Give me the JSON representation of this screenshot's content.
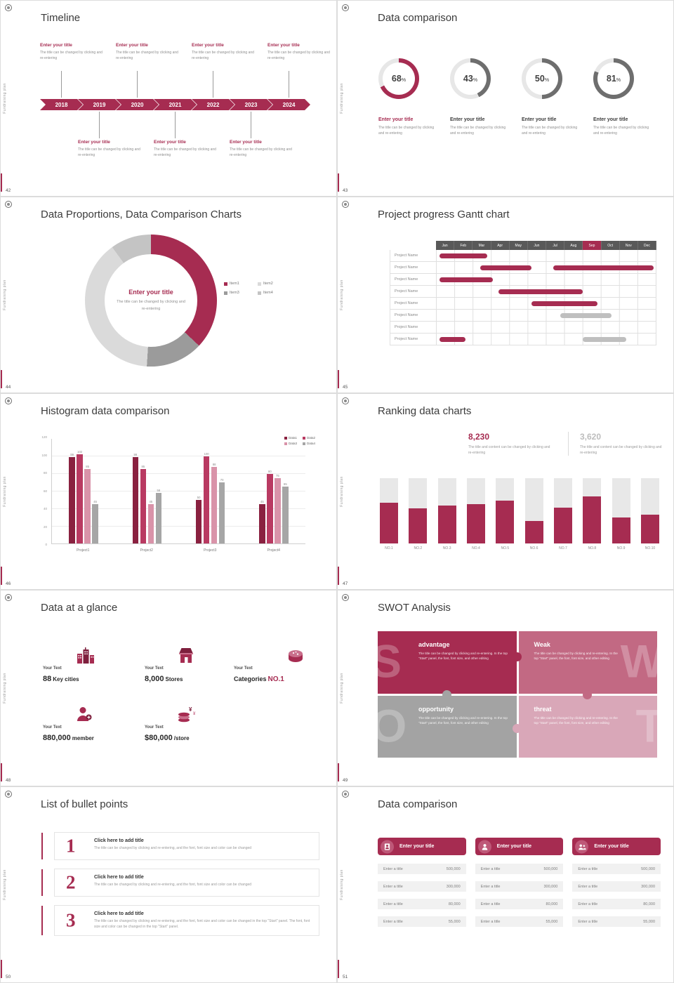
{
  "ui": {
    "accent": "#A62C51",
    "side_label": "Fundraising plan"
  },
  "slide42": {
    "page": "42",
    "title": "Timeline",
    "years": [
      "2018",
      "2019",
      "2020",
      "2021",
      "2022",
      "2023",
      "2024"
    ],
    "top_entries": [
      {
        "title": "Enter your title",
        "desc": "The title can be changed by clicking and re-entering"
      },
      {
        "title": "Enter your title",
        "desc": "The title can be changed by clicking and re-entering"
      },
      {
        "title": "Enter your title",
        "desc": "The title can be changed by clicking and re-entering"
      },
      {
        "title": "Enter your title",
        "desc": "The title can be changed by clicking and re-entering"
      }
    ],
    "bottom_entries": [
      {
        "title": "Enter your title",
        "desc": "The title can be changed by clicking and re-entering"
      },
      {
        "title": "Enter your title",
        "desc": "The title can be changed by clicking and re-entering"
      },
      {
        "title": "Enter your title",
        "desc": "The title can be changed by clicking and re-entering"
      }
    ]
  },
  "slide43": {
    "page": "43",
    "title": "Data comparison",
    "pct_label": "%",
    "chart_data": {
      "type": "pie",
      "values": [
        68,
        43,
        50,
        81
      ],
      "labels": [
        "Enter your title",
        "Enter your title",
        "Enter your title",
        "Enter your title"
      ]
    },
    "donuts": [
      {
        "value": "68",
        "pct": 68,
        "color": "#A62C51",
        "title": "Enter your title",
        "desc": "The title can be changed by clicking and re-entering"
      },
      {
        "value": "43",
        "pct": 43,
        "color": "#6E6E6E",
        "title": "Enter your title",
        "desc": "The title can be changed by clicking and re-entering"
      },
      {
        "value": "50",
        "pct": 50,
        "color": "#6E6E6E",
        "title": "Enter your title",
        "desc": "The title can be changed by clicking and re-entering"
      },
      {
        "value": "81",
        "pct": 81,
        "color": "#6E6E6E",
        "title": "Enter your title",
        "desc": "The title can be changed by clicking and re-entering"
      }
    ]
  },
  "slide44": {
    "page": "44",
    "title": "Data Proportions, Data Comparison Charts",
    "center_title": "Enter your title",
    "center_desc": "The title can be changed by clicking and re-entering",
    "chart_data": {
      "type": "pie",
      "segments": [
        {
          "label": "Item1",
          "color": "#A62C51",
          "value": 37
        },
        {
          "label": "Item3",
          "color": "#9B9B9B",
          "value": 14
        },
        {
          "label": "Item2",
          "color": "#DADADA",
          "value": 39
        },
        {
          "label": "Item4",
          "color": "#C4C4C4",
          "value": 10
        }
      ]
    },
    "legend": [
      {
        "label": "Item1",
        "color": "#A62C51"
      },
      {
        "label": "Item2",
        "color": "#DADADA"
      },
      {
        "label": "Item3",
        "color": "#9B9B9B"
      },
      {
        "label": "Item4",
        "color": "#C4C4C4"
      }
    ]
  },
  "slide45": {
    "page": "45",
    "title": "Project progress Gantt chart",
    "months": [
      "Jan",
      "Feb",
      "Mar",
      "Apr",
      "May",
      "Jun",
      "Jul",
      "Aug",
      "Sep",
      "Oct",
      "Nov",
      "Dec"
    ],
    "chart_data": {
      "type": "gantt",
      "rows": [
        {
          "label": "Project Name",
          "bars": [
            {
              "start": 0.2,
              "end": 2.8,
              "color": "accent"
            }
          ]
        },
        {
          "label": "Project Name",
          "bars": [
            {
              "start": 2.4,
              "end": 5.2,
              "color": "accent"
            },
            {
              "start": 6.4,
              "end": 11.9,
              "color": "accent"
            }
          ]
        },
        {
          "label": "Project Name",
          "bars": [
            {
              "start": 0.2,
              "end": 3.1,
              "color": "accent"
            }
          ]
        },
        {
          "label": "Project Name",
          "bars": [
            {
              "start": 3.4,
              "end": 8.0,
              "color": "accent"
            }
          ]
        },
        {
          "label": "Project Name",
          "bars": [
            {
              "start": 5.2,
              "end": 8.8,
              "color": "accent"
            }
          ]
        },
        {
          "label": "Project Name",
          "bars": [
            {
              "start": 6.8,
              "end": 9.6,
              "color": "gray"
            }
          ]
        },
        {
          "label": "Project Name",
          "bars": []
        },
        {
          "label": "Project Name",
          "bars": [
            {
              "start": 0.2,
              "end": 1.6,
              "color": "accent"
            },
            {
              "start": 8.0,
              "end": 10.4,
              "color": "gray"
            }
          ]
        }
      ]
    }
  },
  "slide46": {
    "page": "46",
    "title": "Histogram data comparison",
    "chart_data": {
      "type": "bar",
      "categories": [
        "Project1",
        "Project2",
        "Project3",
        "Project4"
      ],
      "series": [
        {
          "name": "Data1",
          "color": "#8A2140",
          "values": [
            99,
            99,
            50,
            45
          ]
        },
        {
          "name": "Data2",
          "color": "#B93A62",
          "values": [
            102,
            85,
            100,
            80
          ]
        },
        {
          "name": "Data3",
          "color": "#D993A9",
          "values": [
            85,
            45,
            88,
            75
          ]
        },
        {
          "name": "Data4",
          "color": "#A6A6A6",
          "values": [
            45,
            58,
            70,
            65
          ]
        }
      ],
      "ylim": [
        0,
        120
      ],
      "yticks": [
        0,
        20,
        40,
        60,
        80,
        100,
        120
      ],
      "legend_position": "top-right",
      "grid": true
    }
  },
  "slide47": {
    "page": "47",
    "title": "Ranking data charts",
    "stat_primary": {
      "value": "8,230",
      "desc": "The title and content can be changed by clicking and re-entering"
    },
    "stat_secondary": {
      "value": "3,620",
      "desc": "The title and content can be changed by clicking and re-entering"
    },
    "chart_data": {
      "type": "bar",
      "categories": [
        "NO.1",
        "NO.2",
        "NO.3",
        "NO.4",
        "NO.5",
        "NO.6",
        "NO.7",
        "NO.8",
        "NO.9",
        "NO.10"
      ],
      "values": [
        62,
        54,
        58,
        60,
        66,
        34,
        55,
        72,
        40,
        44
      ],
      "track_max": 100
    }
  },
  "slide48": {
    "page": "48",
    "title": "Data at a glance",
    "stats": [
      {
        "icon": "city-icon",
        "label": "Your Text",
        "value": "88",
        "unit": "Key cities"
      },
      {
        "icon": "store-icon",
        "label": "Your Text",
        "value": "8,000",
        "unit": "Stores"
      },
      {
        "icon": "categories-icon",
        "label": "Your Text",
        "value": "Categories",
        "unit": "NO.1"
      },
      {
        "icon": "member-icon",
        "label": "Your Text",
        "value": "880,000",
        "unit": "member"
      },
      {
        "icon": "money-icon",
        "label": "Your Text",
        "value": "$80,000",
        "unit": "/store"
      }
    ]
  },
  "slide49": {
    "page": "49",
    "title": "SWOT Analysis",
    "quadrants": [
      {
        "letter": "S",
        "title": "advantage",
        "bg": "#A62C51",
        "desc": "The title can be changed by clicking and re-entering. In the top \"Start\" panel, the font, font size, and other editing"
      },
      {
        "letter": "W",
        "title": "Weak",
        "bg": "#C26983",
        "desc": "The title can be changed by clicking and re-entering. In the top \"Start\" panel, the font, font size, and other editing"
      },
      {
        "letter": "O",
        "title": "opportunity",
        "bg": "#A3A3A3",
        "desc": "The title can be changed by clicking and re-entering. In the top \"Start\" panel, the font, font size, and other editing"
      },
      {
        "letter": "T",
        "title": "threat",
        "bg": "#D9A7B8",
        "desc": "The title can be changed by clicking and re-entering. In the top \"Start\" panel, the font, font size, and other editing"
      }
    ]
  },
  "slide50": {
    "page": "50",
    "title": "List of bullet points",
    "items": [
      {
        "num": "1",
        "title": "Click here to add title",
        "desc": "The title can be changed by clicking and re-entering, and the font, font size and color can be changed"
      },
      {
        "num": "2",
        "title": "Click here to add title",
        "desc": "The title can be changed by clicking and re-entering, and the font, font size and color can be changed"
      },
      {
        "num": "3",
        "title": "Click here to add title",
        "desc": "The title can be changed by clicking and re-entering, and the font, font size and color can be changed in the top \"Start\" panel. The font, font size and color can be changed in the top \"Start\" panel."
      }
    ]
  },
  "slide51": {
    "page": "51",
    "title": "Data comparison",
    "cards": [
      {
        "header": "Enter your title",
        "icon": "id-badge-icon",
        "rows": [
          {
            "label": "Enter a title",
            "value": "500,000"
          },
          {
            "label": "Enter a title",
            "value": "300,000"
          },
          {
            "label": "Enter a title",
            "value": "80,000"
          },
          {
            "label": "Enter a title",
            "value": "55,000"
          }
        ]
      },
      {
        "header": "Enter your title",
        "icon": "person-icon",
        "rows": [
          {
            "label": "Enter a title",
            "value": "500,000"
          },
          {
            "label": "Enter a title",
            "value": "300,000"
          },
          {
            "label": "Enter a title",
            "value": "80,000"
          },
          {
            "label": "Enter a title",
            "value": "55,000"
          }
        ]
      },
      {
        "header": "Enter your title",
        "icon": "people-icon",
        "rows": [
          {
            "label": "Enter a title",
            "value": "500,000"
          },
          {
            "label": "Enter a title",
            "value": "300,000"
          },
          {
            "label": "Enter a title",
            "value": "80,000"
          },
          {
            "label": "Enter a title",
            "value": "55,000"
          }
        ]
      }
    ]
  }
}
